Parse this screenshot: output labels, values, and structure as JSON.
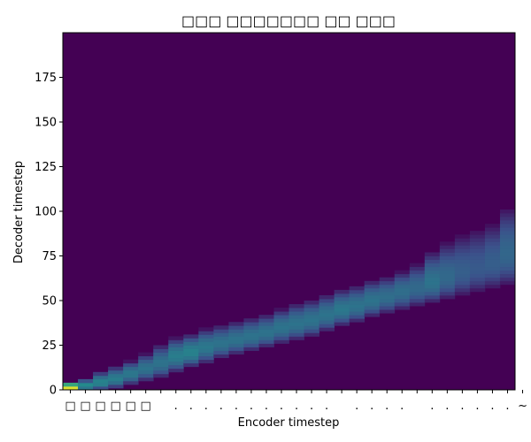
{
  "chart_data": {
    "type": "heatmap",
    "title": "□□□ □□□□□□□ □□ □□□",
    "xlabel": "Encoder timestep",
    "ylabel": "Decoder timestep",
    "x_tick_labels": [
      "□",
      "□",
      "□",
      "□",
      "□",
      "□",
      "",
      ".",
      ".",
      ".",
      ".",
      ".",
      ".",
      ".",
      ".",
      ".",
      ".",
      ".",
      "",
      ".",
      ".",
      ".",
      ".",
      "",
      ".",
      ".",
      ".",
      ".",
      ".",
      ".",
      "~"
    ],
    "y_ticks": [
      0,
      25,
      50,
      75,
      100,
      125,
      150,
      175
    ],
    "x_range": [
      0,
      30
    ],
    "y_range": [
      0,
      200
    ],
    "colormap": "viridis",
    "background_color": "#440154",
    "alignment": {
      "columns": [
        {
          "x": 0,
          "center": 1,
          "low": 0,
          "high": 4,
          "peak": 0.95
        },
        {
          "x": 1,
          "center": 2,
          "low": 0,
          "high": 6,
          "peak": 0.5
        },
        {
          "x": 2,
          "center": 4,
          "low": 0,
          "high": 10,
          "peak": 0.45
        },
        {
          "x": 3,
          "center": 6,
          "low": 1,
          "high": 13,
          "peak": 0.42
        },
        {
          "x": 4,
          "center": 9,
          "low": 3,
          "high": 16,
          "peak": 0.4
        },
        {
          "x": 5,
          "center": 12,
          "low": 5,
          "high": 20,
          "peak": 0.38
        },
        {
          "x": 6,
          "center": 15,
          "low": 7,
          "high": 25,
          "peak": 0.38
        },
        {
          "x": 7,
          "center": 19,
          "low": 10,
          "high": 29,
          "peak": 0.42
        },
        {
          "x": 8,
          "center": 21,
          "low": 13,
          "high": 31,
          "peak": 0.44
        },
        {
          "x": 9,
          "center": 24,
          "low": 15,
          "high": 34,
          "peak": 0.4
        },
        {
          "x": 10,
          "center": 26,
          "low": 18,
          "high": 36,
          "peak": 0.38
        },
        {
          "x": 11,
          "center": 28,
          "low": 20,
          "high": 38,
          "peak": 0.38
        },
        {
          "x": 12,
          "center": 30,
          "low": 22,
          "high": 40,
          "peak": 0.38
        },
        {
          "x": 13,
          "center": 32,
          "low": 24,
          "high": 42,
          "peak": 0.38
        },
        {
          "x": 14,
          "center": 35,
          "low": 26,
          "high": 45,
          "peak": 0.38
        },
        {
          "x": 15,
          "center": 37,
          "low": 28,
          "high": 48,
          "peak": 0.38
        },
        {
          "x": 16,
          "center": 39,
          "low": 30,
          "high": 50,
          "peak": 0.38
        },
        {
          "x": 17,
          "center": 42,
          "low": 33,
          "high": 53,
          "peak": 0.38
        },
        {
          "x": 18,
          "center": 45,
          "low": 36,
          "high": 56,
          "peak": 0.4
        },
        {
          "x": 19,
          "center": 47,
          "low": 38,
          "high": 58,
          "peak": 0.38
        },
        {
          "x": 20,
          "center": 50,
          "low": 41,
          "high": 61,
          "peak": 0.38
        },
        {
          "x": 21,
          "center": 52,
          "low": 43,
          "high": 63,
          "peak": 0.36
        },
        {
          "x": 22,
          "center": 55,
          "low": 45,
          "high": 66,
          "peak": 0.36
        },
        {
          "x": 23,
          "center": 57,
          "low": 47,
          "high": 70,
          "peak": 0.34
        },
        {
          "x": 24,
          "center": 60,
          "low": 49,
          "high": 77,
          "peak": 0.38
        },
        {
          "x": 25,
          "center": 63,
          "low": 51,
          "high": 82,
          "peak": 0.34
        },
        {
          "x": 26,
          "center": 66,
          "low": 53,
          "high": 86,
          "peak": 0.3
        },
        {
          "x": 27,
          "center": 68,
          "low": 55,
          "high": 89,
          "peak": 0.28
        },
        {
          "x": 28,
          "center": 71,
          "low": 57,
          "high": 92,
          "peak": 0.3
        },
        {
          "x": 29,
          "center": 76,
          "low": 59,
          "high": 101,
          "peak": 0.33
        }
      ]
    }
  }
}
